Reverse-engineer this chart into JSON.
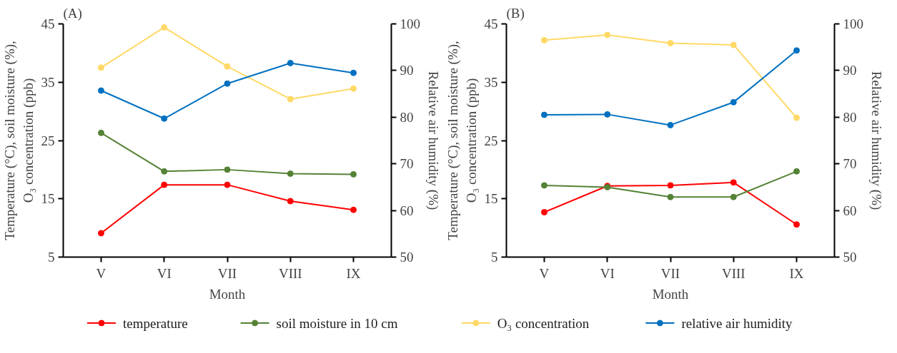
{
  "chart_data": [
    {
      "type": "line",
      "title": "(A)",
      "xlabel": "Month",
      "ylabel": "Temperature (°C), soil moisture (%),\nO₃ concentration (ppb)",
      "y2label": "Relative air humidity (%)",
      "categories": [
        "V",
        "VI",
        "VII",
        "VIII",
        "IX"
      ],
      "ylim": [
        5,
        45
      ],
      "yticks": [
        5,
        15,
        25,
        35,
        45
      ],
      "y2lim": [
        50,
        100
      ],
      "y2ticks": [
        50,
        60,
        70,
        80,
        90,
        100
      ],
      "grid": false,
      "legend": "bottom",
      "marker": "circle",
      "line_style": "solid",
      "series": [
        {
          "name": "temperature",
          "color": "#ff0000",
          "values": [
            9.1,
            17.4,
            17.4,
            14.6,
            13.1
          ]
        },
        {
          "name": "soil moisture in 10 cm",
          "color": "#548235",
          "values": [
            26.3,
            19.7,
            20.0,
            19.3,
            19.2
          ]
        },
        {
          "name": "O₃ concentration",
          "color": "#ffd966",
          "values": [
            37.5,
            44.4,
            37.7,
            32.1,
            33.9
          ]
        },
        {
          "name": "relative air humidity",
          "color": "#0070c0",
          "axis": "y2",
          "values": [
            85.7,
            79.7,
            87.2,
            91.6,
            89.5
          ]
        }
      ]
    },
    {
      "type": "line",
      "title": "(B)",
      "xlabel": "Month",
      "ylabel": "Temperature (°C), soil moisture (%),\nO₃ concentration (ppb)",
      "y2label": "Relative air humidity (%)",
      "categories": [
        "V",
        "VI",
        "VII",
        "VIII",
        "IX"
      ],
      "ylim": [
        5,
        45
      ],
      "yticks": [
        5,
        15,
        25,
        35,
        45
      ],
      "y2lim": [
        50,
        100
      ],
      "y2ticks": [
        50,
        60,
        70,
        80,
        90,
        100
      ],
      "grid": false,
      "marker": "circle",
      "line_style": "solid",
      "series": [
        {
          "color": "#ff0000",
          "values": [
            12.7,
            17.2,
            17.3,
            17.8,
            10.6
          ]
        },
        {
          "color": "#548235",
          "values": [
            17.3,
            17.0,
            15.3,
            15.3,
            19.7
          ]
        },
        {
          "color": "#ffd966",
          "values": [
            42.2,
            43.1,
            41.7,
            41.4,
            28.9
          ]
        },
        {
          "color": "#0070c0",
          "axis": "y2",
          "values": [
            80.5,
            80.6,
            78.3,
            83.2,
            94.3
          ]
        }
      ]
    }
  ]
}
